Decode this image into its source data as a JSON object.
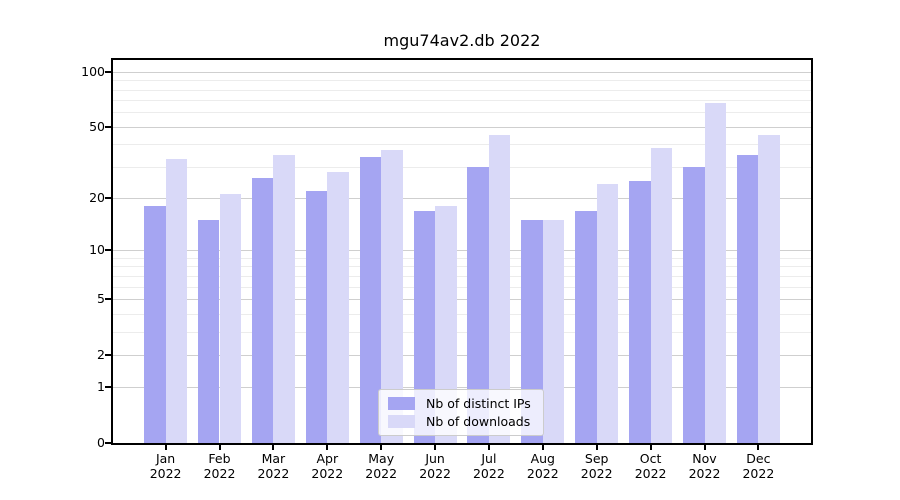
{
  "chart_data": {
    "type": "bar",
    "title": "mgu74av2.db 2022",
    "categories": [
      "Jan 2022",
      "Feb 2022",
      "Mar 2022",
      "Apr 2022",
      "May 2022",
      "Jun 2022",
      "Jul 2022",
      "Aug 2022",
      "Sep 2022",
      "Oct 2022",
      "Nov 2022",
      "Dec 2022"
    ],
    "months": [
      "Jan",
      "Feb",
      "Mar",
      "Apr",
      "May",
      "Jun",
      "Jul",
      "Aug",
      "Sep",
      "Oct",
      "Nov",
      "Dec"
    ],
    "year": "2022",
    "series": [
      {
        "name": "Nb of distinct IPs",
        "color": "#a5a5f2",
        "values": [
          18,
          15,
          26,
          22,
          34,
          17,
          30,
          15,
          17,
          25,
          30,
          35
        ]
      },
      {
        "name": "Nb of downloads",
        "color": "#d9d9f8",
        "values": [
          33,
          21,
          35,
          28,
          37,
          18,
          45,
          15,
          24,
          38,
          68,
          45
        ]
      }
    ],
    "y_scale": "log1p",
    "y_major_ticks": [
      0,
      1,
      2,
      5,
      10,
      20,
      50,
      100
    ],
    "y_minor_ticks": [
      3,
      4,
      6,
      7,
      8,
      9,
      30,
      40,
      60,
      70,
      80,
      90
    ],
    "ylim": [
      0,
      116
    ],
    "xlabel": "",
    "ylabel": "",
    "grid": true,
    "legend_position": "lower center",
    "colors": {
      "major_grid": "#cfcfcf",
      "minor_grid": "#ececec",
      "spine": "#000000",
      "legend_border": "#cccccc"
    }
  }
}
